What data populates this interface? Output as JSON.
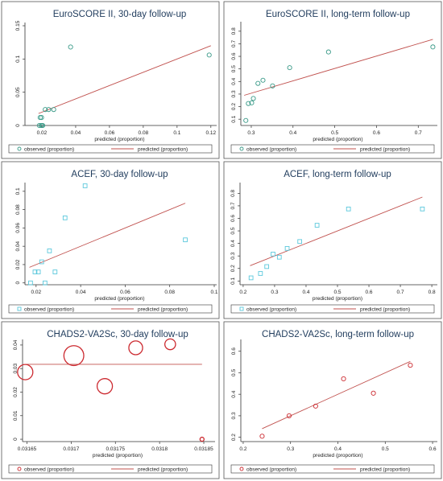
{
  "chart_data": [
    {
      "type": "scatter",
      "title": "EuroSCORE II, 30-day follow-up",
      "xlabel": "predicted (proportion)",
      "ylabel": "",
      "xlim": [
        0.01,
        0.122
      ],
      "ylim": [
        0,
        0.15
      ],
      "xticks": [
        0.02,
        0.04,
        0.06,
        0.08,
        0.1,
        0.12
      ],
      "xtick_labels": [
        "0.02",
        "0.04",
        "0.06",
        "0.08",
        "0.1",
        "0.12"
      ],
      "yticks": [
        0,
        0.05,
        0.1,
        0.15
      ],
      "ytick_labels": [
        "0",
        "0.05",
        "0.1",
        "0.15"
      ],
      "marker": "circle",
      "marker_color": "#3a9a88",
      "line_color": "#c0504d",
      "line_from_data": false,
      "sized_markers": false,
      "observed": {
        "x": [
          0.0185,
          0.019,
          0.0195,
          0.0198,
          0.0202,
          0.0205,
          0.022,
          0.024,
          0.027,
          0.037,
          0.119
        ],
        "y": [
          0.0,
          0.012,
          0.0,
          0.012,
          0.0,
          0.0,
          0.024,
          0.024,
          0.024,
          0.118,
          0.106
        ]
      },
      "predicted_line": {
        "x": [
          0.018,
          0.12
        ],
        "y": [
          0.018,
          0.12
        ]
      },
      "legend": [
        "observed (proportion)",
        "predicted (proportion)"
      ],
      "legend_position": "bottom"
    },
    {
      "type": "scatter",
      "title": "EuroSCORE II, long-term follow-up",
      "xlabel": "predicted (proportion)",
      "ylabel": "",
      "xlim": [
        0.275,
        0.74
      ],
      "ylim": [
        0.05,
        0.85
      ],
      "xticks": [
        0.3,
        0.4,
        0.5,
        0.6,
        0.7
      ],
      "xtick_labels": [
        "0.3",
        "0.4",
        "0.5",
        "0.6",
        "0.7"
      ],
      "yticks": [
        0.1,
        0.2,
        0.3,
        0.4,
        0.5,
        0.6,
        0.7,
        0.8
      ],
      "ytick_labels": [
        "0.1",
        "0.2",
        "0.3",
        "0.4",
        "0.5",
        "0.6",
        "0.7",
        "0.8"
      ],
      "marker": "circle",
      "marker_color": "#3a9a88",
      "line_color": "#c0504d",
      "line_from_data": false,
      "sized_markers": false,
      "observed": {
        "x": [
          0.287,
          0.293,
          0.301,
          0.305,
          0.316,
          0.328,
          0.351,
          0.392,
          0.485,
          0.735
        ],
        "y": [
          0.09,
          0.225,
          0.23,
          0.265,
          0.385,
          0.41,
          0.365,
          0.51,
          0.635,
          0.675
        ]
      },
      "predicted_line": {
        "x": [
          0.283,
          0.735
        ],
        "y": [
          0.29,
          0.735
        ]
      },
      "legend": [
        "observed (proportion)",
        "predicted (proportion)"
      ],
      "legend_position": "bottom"
    },
    {
      "type": "scatter",
      "title": "ACEF, 30-day follow-up",
      "xlabel": "predicted (proportion)",
      "ylabel": "",
      "xlim": [
        0.015,
        0.1
      ],
      "ylim": [
        -0.002,
        0.106
      ],
      "xticks": [
        0.02,
        0.04,
        0.06,
        0.08,
        0.1
      ],
      "xtick_labels": [
        "0.02",
        "0.04",
        "0.06",
        "0.08",
        "0.1"
      ],
      "yticks": [
        0,
        0.02,
        0.04,
        0.06,
        0.08,
        0.1
      ],
      "ytick_labels": [
        "0",
        "0.02",
        "0.04",
        "0.06",
        "0.08",
        "0.1"
      ],
      "marker": "square",
      "marker_color": "#5bc8dc",
      "line_color": "#c0504d",
      "line_from_data": false,
      "sized_markers": false,
      "observed": {
        "x": [
          0.0175,
          0.0195,
          0.021,
          0.0225,
          0.024,
          0.026,
          0.0285,
          0.033,
          0.042,
          0.087
        ],
        "y": [
          0.0,
          0.012,
          0.012,
          0.023,
          0.0,
          0.035,
          0.012,
          0.071,
          0.106,
          0.047
        ]
      },
      "predicted_line": {
        "x": [
          0.017,
          0.087
        ],
        "y": [
          0.017,
          0.087
        ]
      },
      "legend": [
        "observed (proportion)",
        "predicted (proportion)"
      ],
      "legend_position": "bottom"
    },
    {
      "type": "scatter",
      "title": "ACEF, long-term follow-up",
      "xlabel": "predicted (proportion)",
      "ylabel": "",
      "xlim": [
        0.19,
        0.81
      ],
      "ylim": [
        0.07,
        0.86
      ],
      "xticks": [
        0.2,
        0.3,
        0.4,
        0.5,
        0.6,
        0.7,
        0.8
      ],
      "xtick_labels": [
        "0.2",
        "0.3",
        "0.4",
        "0.5",
        "0.6",
        "0.7",
        "0.8"
      ],
      "yticks": [
        0.1,
        0.2,
        0.3,
        0.4,
        0.5,
        0.6,
        0.7,
        0.8
      ],
      "ytick_labels": [
        "0.1",
        "0.2",
        "0.3",
        "0.4",
        "0.5",
        "0.6",
        "0.7",
        "0.8"
      ],
      "marker": "square",
      "marker_color": "#5bc8dc",
      "line_color": "#c0504d",
      "line_from_data": false,
      "sized_markers": false,
      "observed": {
        "x": [
          0.225,
          0.255,
          0.275,
          0.295,
          0.315,
          0.34,
          0.38,
          0.435,
          0.535,
          0.77
        ],
        "y": [
          0.125,
          0.16,
          0.215,
          0.315,
          0.29,
          0.36,
          0.415,
          0.545,
          0.675,
          0.675
        ]
      },
      "predicted_line": {
        "x": [
          0.222,
          0.77
        ],
        "y": [
          0.222,
          0.77
        ]
      },
      "legend": [
        "observed (proportion)",
        "predicted (proportion)"
      ],
      "legend_position": "bottom"
    },
    {
      "type": "scatter",
      "title": "CHADS2-VA2Sc, 30-day follow-up",
      "xlabel": "predicted (proportion)",
      "ylabel": "",
      "xlim": [
        0.031645,
        0.03186
      ],
      "ylim": [
        -0.001,
        0.041
      ],
      "xticks": [
        0.03165,
        0.0317,
        0.03175,
        0.0318,
        0.03185
      ],
      "xtick_labels": [
        "0.03165",
        "0.0317",
        "0.03175",
        "0.0318",
        "0.03185"
      ],
      "yticks": [
        0,
        0.01,
        0.02,
        0.03,
        0.04
      ],
      "ytick_labels": [
        "0",
        "0.01",
        "0.02",
        "0.03",
        "0.04"
      ],
      "marker": "circle",
      "marker_color": "#cc2a30",
      "line_color": "#c0504d",
      "line_from_data": true,
      "sized_markers": true,
      "observed": {
        "x": [
          0.031648,
          0.031703,
          0.031738,
          0.031773,
          0.031812,
          0.031848
        ],
        "y": [
          0.0285,
          0.0355,
          0.0225,
          0.0388,
          0.0403,
          0.0
        ],
        "size": [
          1.0,
          1.3,
          1.0,
          0.9,
          0.7,
          0.25
        ]
      },
      "predicted_line": {
        "x": [
          0.031649,
          0.031848
        ],
        "y": [
          0.0318,
          0.0318
        ]
      },
      "legend": [
        "observed (proportion)",
        "predicted (proportion)"
      ],
      "legend_position": "bottom"
    },
    {
      "type": "scatter",
      "title": "CHADS2-VA2Sc, long-term follow-up",
      "xlabel": "predicted (proportion)",
      "ylabel": "",
      "xlim": [
        0.195,
        0.605
      ],
      "ylim": [
        0.18,
        0.64
      ],
      "xticks": [
        0.2,
        0.3,
        0.4,
        0.5,
        0.6
      ],
      "xtick_labels": [
        "0.2",
        "0.3",
        "0.4",
        "0.5",
        "0.6"
      ],
      "yticks": [
        0.2,
        0.3,
        0.4,
        0.5,
        0.6
      ],
      "ytick_labels": [
        "0.2",
        "0.3",
        "0.4",
        "0.5",
        "0.6"
      ],
      "marker": "circle",
      "marker_color": "#cc2a30",
      "line_color": "#c0504d",
      "line_from_data": false,
      "sized_markers": false,
      "observed": {
        "x": [
          0.24,
          0.297,
          0.353,
          0.412,
          0.475,
          0.553
        ],
        "y": [
          0.205,
          0.3,
          0.345,
          0.472,
          0.405,
          0.535
        ]
      },
      "predicted_line": {
        "x": [
          0.24,
          0.553
        ],
        "y": [
          0.24,
          0.553
        ]
      },
      "legend": [
        "observed (proportion)",
        "predicted (proportion)"
      ],
      "legend_position": "bottom"
    }
  ]
}
